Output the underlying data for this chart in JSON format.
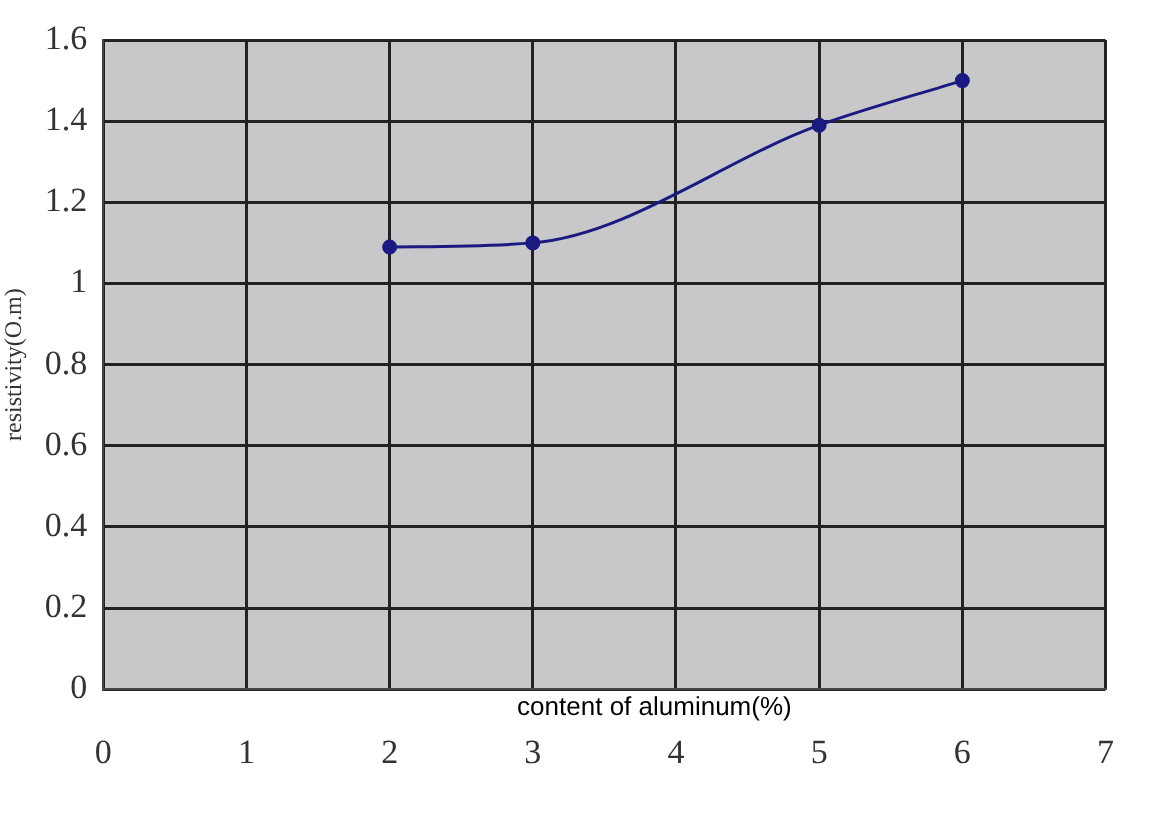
{
  "chart_data": {
    "type": "line",
    "xlabel": "content of aluminum(%)",
    "ylabel": "resistivity(O.m)",
    "x": [
      2,
      3,
      5,
      6
    ],
    "series": [
      {
        "color": "#1a1a80",
        "values": [
          1.09,
          1.1,
          1.39,
          1.5
        ]
      }
    ],
    "xlim": [
      0,
      7
    ],
    "xticks": [
      0,
      1,
      2,
      3,
      4,
      5,
      6,
      7
    ],
    "ylim": [
      0,
      1.6
    ],
    "yticks": [
      0,
      0.2,
      0.4,
      0.6,
      0.8,
      1,
      1.2,
      1.4,
      1.6
    ],
    "grid": true,
    "marker": "circle",
    "line_style": "solid"
  }
}
